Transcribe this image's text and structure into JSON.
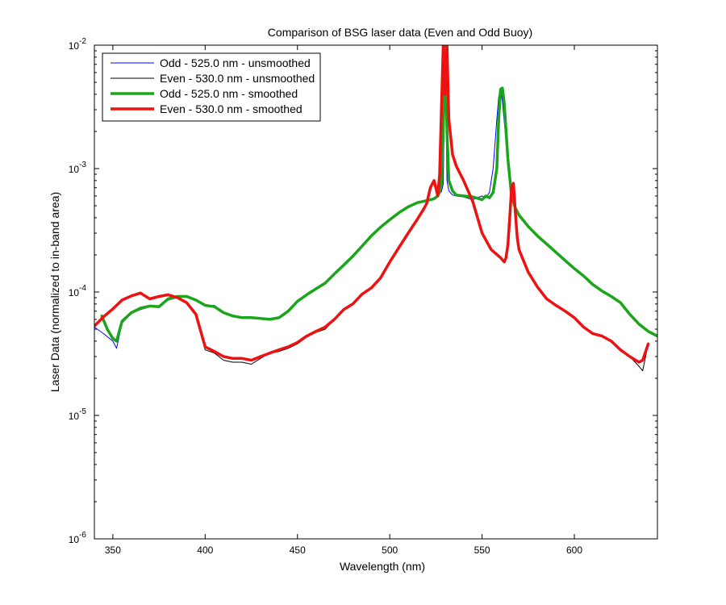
{
  "chart_data": {
    "type": "line",
    "title": "Comparison of BSG laser data (Even and Odd Buoy)",
    "xlabel": "Wavelength (nm)",
    "ylabel": "Laser Data (normalized to in-band area)",
    "xlim": [
      340,
      645
    ],
    "ylim": [
      1e-06,
      0.01
    ],
    "yscale": "log",
    "xticks": [
      350,
      400,
      450,
      500,
      550,
      600
    ],
    "yticks": [
      {
        "value": 1e-06,
        "base": "10",
        "exp": "-6"
      },
      {
        "value": 1e-05,
        "base": "10",
        "exp": "-5"
      },
      {
        "value": 0.0001,
        "base": "10",
        "exp": "-4"
      },
      {
        "value": 0.001,
        "base": "10",
        "exp": "-3"
      },
      {
        "value": 0.01,
        "base": "10",
        "exp": "-2"
      }
    ],
    "grid": false,
    "legend_position": "top-left",
    "series": [
      {
        "name": "Odd - 525.0 nm - unsmoothed",
        "color": "#0000ff",
        "width": 1,
        "x": [
          340,
          345,
          350,
          352,
          355,
          360,
          365,
          370,
          375,
          380,
          385,
          390,
          395,
          400,
          405,
          410,
          415,
          420,
          425,
          430,
          435,
          440,
          445,
          450,
          455,
          460,
          465,
          470,
          475,
          480,
          485,
          490,
          495,
          500,
          505,
          510,
          515,
          520,
          524,
          526,
          528,
          529,
          530,
          531,
          532,
          534,
          536,
          540,
          545,
          550,
          552,
          554,
          556,
          558,
          559,
          560,
          561,
          562,
          564,
          566,
          568,
          570,
          575,
          580,
          585,
          590,
          595,
          600,
          605,
          610,
          615,
          620,
          625,
          630,
          635,
          640,
          645
        ],
        "y": [
          5.2e-05,
          4.6e-05,
          4e-05,
          3.5e-05,
          5.6e-05,
          6.7e-05,
          7.2e-05,
          7.6e-05,
          7.5e-05,
          8.6e-05,
          9e-05,
          9.2e-05,
          8.6e-05,
          7.8e-05,
          7.8e-05,
          6.8e-05,
          6.3e-05,
          6.2e-05,
          6.2e-05,
          6.1e-05,
          6e-05,
          6.2e-05,
          7e-05,
          8.4e-05,
          9.5e-05,
          0.000106,
          0.000118,
          0.00014,
          0.000165,
          0.000195,
          0.000235,
          0.000285,
          0.000335,
          0.000385,
          0.00044,
          0.00049,
          0.00053,
          0.00055,
          0.00057,
          0.0006,
          0.00065,
          0.00075,
          0.01,
          0.0008,
          0.00066,
          0.00061,
          0.0006,
          0.00059,
          0.00056,
          0.0006,
          0.00058,
          0.00064,
          0.001,
          0.0025,
          0.0038,
          0.0045,
          0.0035,
          0.0024,
          0.0011,
          0.0006,
          0.00048,
          0.00042,
          0.00034,
          0.000285,
          0.000245,
          0.00021,
          0.00018,
          0.000155,
          0.000135,
          0.000115,
          0.000102,
          9.2e-05,
          8.2e-05,
          6.6e-05,
          5.5e-05,
          4.8e-05,
          4.4e-05
        ]
      },
      {
        "name": "Even - 530.0 nm - unsmoothed",
        "color": "#000000",
        "width": 1,
        "x": [
          340,
          345,
          350,
          355,
          360,
          365,
          370,
          375,
          380,
          385,
          390,
          395,
          400,
          405,
          410,
          415,
          420,
          425,
          430,
          435,
          440,
          445,
          450,
          455,
          460,
          465,
          470,
          475,
          480,
          485,
          490,
          495,
          500,
          505,
          510,
          515,
          518,
          520,
          522,
          524,
          526,
          527,
          528,
          529,
          530,
          531,
          532,
          534,
          536,
          540,
          545,
          550,
          555,
          560,
          562,
          563,
          564,
          565,
          566,
          567,
          568,
          569,
          570,
          575,
          580,
          585,
          590,
          595,
          600,
          605,
          610,
          615,
          620,
          625,
          630,
          635,
          637,
          640
        ],
        "y": [
          5.3e-05,
          6.3e-05,
          7.3e-05,
          8.6e-05,
          9.3e-05,
          0.0001,
          8.8e-05,
          9.2e-05,
          9.5e-05,
          9e-05,
          8.2e-05,
          6.6e-05,
          3.4e-05,
          3.2e-05,
          2.8e-05,
          2.7e-05,
          2.7e-05,
          2.6e-05,
          2.9e-05,
          3.2e-05,
          3.3e-05,
          3.5e-05,
          3.8e-05,
          4.3e-05,
          4.7e-05,
          5e-05,
          6e-05,
          7.2e-05,
          8e-05,
          9.6e-05,
          0.000108,
          0.00013,
          0.000175,
          0.00023,
          0.0003,
          0.00039,
          0.00046,
          0.00052,
          0.0007,
          0.0008,
          0.0006,
          0.0009,
          0.003,
          0.01,
          0.004,
          0.01,
          0.0025,
          0.0013,
          0.00105,
          0.0008,
          0.00054,
          0.0003,
          0.00022,
          0.00019,
          0.000175,
          0.00019,
          0.00024,
          0.0004,
          0.0007,
          0.00076,
          0.00045,
          0.00028,
          0.00022,
          0.000145,
          0.00011,
          8.8e-05,
          7.8e-05,
          7e-05,
          6.2e-05,
          5.2e-05,
          4.6e-05,
          4.4e-05,
          4e-05,
          3.4e-05,
          3e-05,
          2.5e-05,
          2.3e-05,
          3.8e-05
        ]
      },
      {
        "name": "Odd - 525.0 nm - smoothed",
        "color": "#1aa51a",
        "width": 3.5,
        "x": [
          344,
          347,
          350,
          352,
          355,
          360,
          365,
          370,
          375,
          380,
          385,
          390,
          395,
          400,
          405,
          410,
          415,
          420,
          425,
          430,
          435,
          440,
          445,
          450,
          455,
          460,
          465,
          470,
          475,
          480,
          485,
          490,
          495,
          500,
          505,
          510,
          515,
          520,
          524,
          526,
          527,
          528,
          529,
          530,
          531,
          532,
          534,
          536,
          540,
          545,
          550,
          552,
          554,
          556,
          558,
          559,
          560,
          561,
          562,
          564,
          566,
          568,
          570,
          575,
          580,
          585,
          590,
          595,
          600,
          605,
          610,
          615,
          620,
          625,
          630,
          635,
          640,
          645
        ],
        "y": [
          6.4e-05,
          5e-05,
          4.2e-05,
          4e-05,
          5.8e-05,
          6.8e-05,
          7.4e-05,
          7.7e-05,
          7.6e-05,
          8.8e-05,
          9.2e-05,
          9.2e-05,
          8.6e-05,
          7.8e-05,
          7.6e-05,
          6.8e-05,
          6.4e-05,
          6.2e-05,
          6.2e-05,
          6.1e-05,
          6e-05,
          6.2e-05,
          7e-05,
          8.4e-05,
          9.5e-05,
          0.000106,
          0.000118,
          0.00014,
          0.000165,
          0.000195,
          0.000235,
          0.000285,
          0.000335,
          0.000385,
          0.00044,
          0.00049,
          0.00053,
          0.00055,
          0.00057,
          0.0006,
          0.00065,
          0.00075,
          0.002,
          0.01,
          0.002,
          0.0008,
          0.00066,
          0.00061,
          0.0006,
          0.00059,
          0.00056,
          0.0006,
          0.00058,
          0.00064,
          0.001,
          0.0025,
          0.0044,
          0.0045,
          0.0034,
          0.0012,
          0.0006,
          0.00048,
          0.00042,
          0.00034,
          0.000285,
          0.000245,
          0.00021,
          0.00018,
          0.000155,
          0.000135,
          0.000115,
          0.000102,
          9.2e-05,
          8.2e-05,
          6.6e-05,
          5.5e-05,
          4.8e-05,
          4.4e-05
        ]
      },
      {
        "name": "Even - 530.0 nm - smoothed",
        "color": "#ee1111",
        "width": 3.5,
        "x": [
          340,
          345,
          350,
          355,
          360,
          365,
          370,
          375,
          380,
          385,
          390,
          395,
          400,
          405,
          410,
          415,
          420,
          425,
          430,
          435,
          440,
          445,
          450,
          455,
          460,
          465,
          470,
          475,
          480,
          485,
          490,
          495,
          500,
          505,
          510,
          515,
          518,
          520,
          522,
          524,
          526,
          527,
          528,
          529,
          530,
          531,
          532,
          534,
          536,
          540,
          545,
          550,
          555,
          560,
          562,
          563,
          564,
          565,
          566,
          567,
          568,
          569,
          570,
          575,
          580,
          585,
          590,
          595,
          600,
          605,
          610,
          615,
          620,
          625,
          630,
          635,
          637,
          640
        ],
        "y": [
          5.3e-05,
          6.3e-05,
          7.3e-05,
          8.6e-05,
          9.3e-05,
          9.8e-05,
          8.8e-05,
          9.2e-05,
          9.5e-05,
          9e-05,
          8.2e-05,
          6.6e-05,
          3.6e-05,
          3.3e-05,
          3e-05,
          2.9e-05,
          2.9e-05,
          2.8e-05,
          3e-05,
          3.2e-05,
          3.4e-05,
          3.6e-05,
          3.9e-05,
          4.4e-05,
          4.8e-05,
          5.2e-05,
          6e-05,
          7.2e-05,
          8e-05,
          9.6e-05,
          0.000108,
          0.00013,
          0.000175,
          0.00023,
          0.0003,
          0.00039,
          0.00046,
          0.00052,
          0.0007,
          0.0008,
          0.0006,
          0.0009,
          0.003,
          0.01,
          0.004,
          0.01,
          0.0025,
          0.0013,
          0.00105,
          0.0008,
          0.00054,
          0.0003,
          0.00022,
          0.00019,
          0.000175,
          0.00019,
          0.00024,
          0.0004,
          0.0007,
          0.00076,
          0.00045,
          0.00028,
          0.00022,
          0.000145,
          0.00011,
          8.8e-05,
          7.8e-05,
          7e-05,
          6.2e-05,
          5.2e-05,
          4.6e-05,
          4.4e-05,
          4e-05,
          3.4e-05,
          3e-05,
          2.7e-05,
          2.8e-05,
          3.8e-05
        ]
      }
    ]
  }
}
